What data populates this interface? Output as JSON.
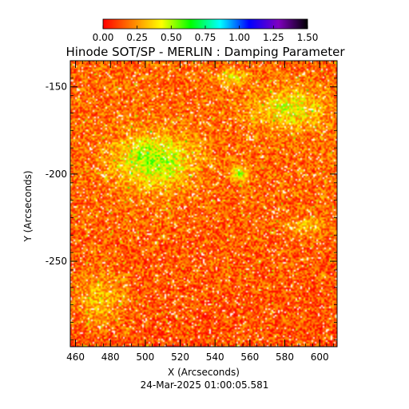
{
  "chart_data": {
    "type": "heatmap",
    "title": "Hinode SOT/SP - MERLIN : Damping Parameter",
    "xlabel": "X (Arcseconds)",
    "ylabel": "Y (Arcseconds)",
    "xlim": [
      457,
      610
    ],
    "ylim": [
      -299,
      -135
    ],
    "x_ticks": [
      "460",
      "480",
      "500",
      "520",
      "540",
      "560",
      "580",
      "600"
    ],
    "x_tick_values": [
      460,
      480,
      500,
      520,
      540,
      560,
      580,
      600
    ],
    "y_ticks": [
      "-150",
      "-200",
      "-250"
    ],
    "y_tick_values": [
      -150,
      -200,
      -250
    ],
    "colorbar": {
      "range": [
        0.0,
        1.5
      ],
      "ticks": [
        "0.00",
        "0.25",
        "0.50",
        "0.75",
        "1.00",
        "1.25",
        "1.50"
      ],
      "tick_values": [
        0.0,
        0.25,
        0.5,
        0.75,
        1.0,
        1.25,
        1.5
      ],
      "colors": [
        "#ff0000",
        "#ff8000",
        "#ffff00",
        "#00ff00",
        "#00ffff",
        "#0000ff",
        "#8000c0",
        "#000000"
      ]
    },
    "typical_value_range": [
      0.0,
      0.8
    ],
    "enhanced_regions": [
      {
        "x": [
          480,
          530
        ],
        "y": [
          -210,
          -175
        ],
        "level": 0.6
      },
      {
        "x": [
          560,
          605
        ],
        "y": [
          -175,
          -150
        ],
        "level": 0.5
      },
      {
        "x": [
          540,
          560
        ],
        "y": [
          -150,
          -140
        ],
        "level": 0.45
      },
      {
        "x": [
          548,
          560
        ],
        "y": [
          -205,
          -195
        ],
        "level": 0.55
      },
      {
        "x": [
          458,
          490
        ],
        "y": [
          -290,
          -255
        ],
        "level": 0.4
      },
      {
        "x": [
          580,
          605
        ],
        "y": [
          -235,
          -225
        ],
        "level": 0.4
      }
    ],
    "timestamp": "24-Mar-2025 01:00:05.581"
  }
}
